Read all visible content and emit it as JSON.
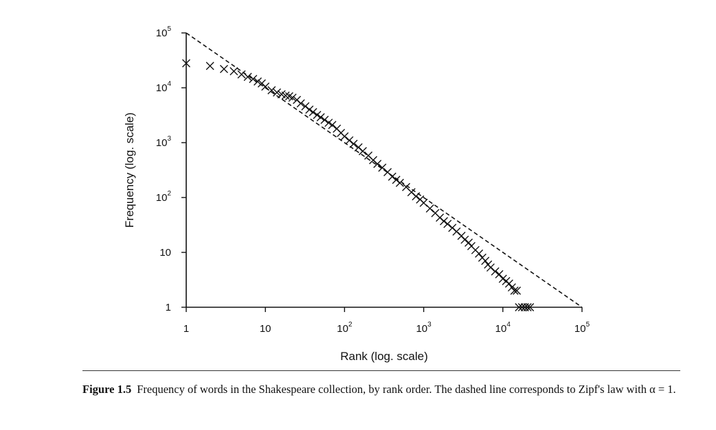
{
  "chart_data": {
    "type": "scatter",
    "xlabel": "Rank (log. scale)",
    "ylabel": "Frequency (log. scale)",
    "x_scale": "log",
    "y_scale": "log",
    "xlim": [
      1,
      100000
    ],
    "ylim": [
      1,
      100000
    ],
    "x_ticks": [
      {
        "value": 1,
        "base": "1",
        "exp": ""
      },
      {
        "value": 10,
        "base": "10",
        "exp": ""
      },
      {
        "value": 100,
        "base": "10",
        "exp": "2"
      },
      {
        "value": 1000,
        "base": "10",
        "exp": "3"
      },
      {
        "value": 10000,
        "base": "10",
        "exp": "4"
      },
      {
        "value": 100000,
        "base": "10",
        "exp": "5"
      }
    ],
    "y_ticks": [
      {
        "value": 1,
        "base": "1",
        "exp": ""
      },
      {
        "value": 10,
        "base": "10",
        "exp": ""
      },
      {
        "value": 100,
        "base": "10",
        "exp": "2"
      },
      {
        "value": 1000,
        "base": "10",
        "exp": "3"
      },
      {
        "value": 10000,
        "base": "10",
        "exp": "4"
      },
      {
        "value": 100000,
        "base": "10",
        "exp": "5"
      }
    ],
    "series": [
      {
        "marker": "x",
        "color": "#111111",
        "points": [
          [
            1,
            28000
          ],
          [
            2,
            25000
          ],
          [
            3,
            22000
          ],
          [
            4,
            20000
          ],
          [
            5,
            17500
          ],
          [
            6,
            15800
          ],
          [
            7,
            14500
          ],
          [
            8,
            13000
          ],
          [
            9,
            12000
          ],
          [
            10,
            10500
          ],
          [
            12,
            9000
          ],
          [
            14,
            8200
          ],
          [
            16,
            7600
          ],
          [
            18,
            7200
          ],
          [
            20,
            7000
          ],
          [
            22,
            6600
          ],
          [
            25,
            6000
          ],
          [
            28,
            5200
          ],
          [
            32,
            4600
          ],
          [
            36,
            4000
          ],
          [
            40,
            3600
          ],
          [
            45,
            3200
          ],
          [
            50,
            2900
          ],
          [
            56,
            2600
          ],
          [
            63,
            2300
          ],
          [
            70,
            2100
          ],
          [
            80,
            1800
          ],
          [
            90,
            1500
          ],
          [
            100,
            1300
          ],
          [
            115,
            1100
          ],
          [
            130,
            950
          ],
          [
            150,
            820
          ],
          [
            170,
            700
          ],
          [
            200,
            580
          ],
          [
            230,
            480
          ],
          [
            260,
            410
          ],
          [
            300,
            350
          ],
          [
            350,
            290
          ],
          [
            400,
            240
          ],
          [
            450,
            210
          ],
          [
            500,
            185
          ],
          [
            600,
            155
          ],
          [
            700,
            125
          ],
          [
            800,
            105
          ],
          [
            900,
            92
          ],
          [
            1000,
            80
          ],
          [
            1200,
            63
          ],
          [
            1400,
            52
          ],
          [
            1600,
            43
          ],
          [
            1800,
            37
          ],
          [
            2000,
            33
          ],
          [
            2300,
            28
          ],
          [
            2600,
            24
          ],
          [
            3000,
            20
          ],
          [
            3300,
            17
          ],
          [
            3700,
            15
          ],
          [
            4000,
            13
          ],
          [
            4500,
            11
          ],
          [
            5000,
            9.5
          ],
          [
            5500,
            8
          ],
          [
            6000,
            7
          ],
          [
            6500,
            6
          ],
          [
            7000,
            5.3
          ],
          [
            8000,
            4.5
          ],
          [
            9000,
            4
          ],
          [
            10000,
            3.3
          ],
          [
            11000,
            3
          ],
          [
            12000,
            2.7
          ],
          [
            13000,
            2.3
          ],
          [
            14000,
            2
          ],
          [
            15000,
            2
          ],
          [
            16000,
            1
          ],
          [
            17500,
            1
          ],
          [
            19000,
            1
          ],
          [
            20500,
            1
          ],
          [
            22000,
            1
          ]
        ]
      },
      {
        "style": "dashed",
        "color": "#111111",
        "points": [
          [
            1,
            100000
          ],
          [
            100000,
            1
          ]
        ]
      }
    ]
  },
  "caption": {
    "label": "Figure 1.5",
    "text": "Frequency of words in the Shakespeare collection, by rank order. The dashed line corresponds to Zipf's law with α = 1."
  }
}
